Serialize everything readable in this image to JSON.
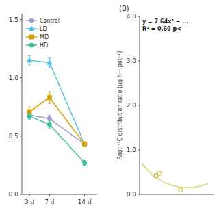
{
  "chart_data": [
    {
      "type": "line",
      "x": [
        3,
        7,
        14
      ],
      "xlim": [
        1.5,
        16.5
      ],
      "xticks": [
        {
          "value": 3,
          "label": "3 d"
        },
        {
          "value": 7,
          "label": "7 d"
        },
        {
          "value": 14,
          "label": "14 d"
        }
      ],
      "ylim": [
        0.0,
        1.55
      ],
      "yticks": [
        {
          "value": 0.0,
          "label": "0.0"
        },
        0.5,
        {
          "value": 1.0,
          "label": "1.0"
        },
        1.5
      ],
      "legend": "upper left",
      "series": [
        {
          "name": "Control",
          "color": "#a0a0cc",
          "marker": "circle",
          "line_style": "solid",
          "values": [
            0.68,
            0.65,
            0.43
          ],
          "errors": [
            0.03,
            0.03,
            0.02
          ]
        },
        {
          "name": "LD",
          "color": "#4fc4e0",
          "marker": "triangle",
          "line_style": "solid",
          "values": [
            1.15,
            1.13,
            0.43
          ],
          "errors": [
            0.04,
            0.04,
            0.02
          ]
        },
        {
          "name": "MD",
          "color": "#d4a000",
          "marker": "square",
          "line_style": "solid",
          "values": [
            0.71,
            0.83,
            0.43
          ],
          "errors": [
            0.04,
            0.05,
            0.02
          ]
        },
        {
          "name": "HD",
          "color": "#40c090",
          "marker": "circle",
          "line_style": "solid",
          "values": [
            0.67,
            0.6,
            0.27
          ],
          "errors": [
            0.03,
            0.03,
            0.02
          ]
        }
      ]
    },
    {
      "type": "scatter",
      "title": "(B)",
      "y_label": "Root ¹³C distribution ratio (ug h⁻¹ pot⁻¹)",
      "xlim": [
        0.18,
        0.85
      ],
      "ylim": [
        0.0,
        4.0
      ],
      "yticks": [
        {
          "value": 0.0,
          "label": "0.0"
        },
        {
          "value": 1.0,
          "label": "1.0"
        },
        {
          "value": 2.0,
          "label": "2.0"
        },
        {
          "value": 3.0,
          "label": "3.0"
        },
        {
          "value": 4.0,
          "label": "4.0"
        }
      ],
      "tick_labels": "y",
      "annotations": [
        "y = 7.64x² − ...",
        "R² = 0.69  p<"
      ],
      "series": [
        {
          "type": "scatter",
          "color": "#c8a800",
          "marker": "circle",
          "x": [
            0.33,
            0.36,
            0.55
          ],
          "values": [
            0.42,
            0.47,
            0.1
          ]
        },
        {
          "type": "line",
          "color": "#dede90",
          "line_style": "solid",
          "x": [
            0.2,
            0.25,
            0.3,
            0.35,
            0.4,
            0.45,
            0.5,
            0.55,
            0.6,
            0.65,
            0.7,
            0.75,
            0.8
          ],
          "values": [
            0.7,
            0.55,
            0.43,
            0.34,
            0.27,
            0.22,
            0.18,
            0.16,
            0.15,
            0.15,
            0.17,
            0.2,
            0.24
          ]
        }
      ]
    }
  ]
}
